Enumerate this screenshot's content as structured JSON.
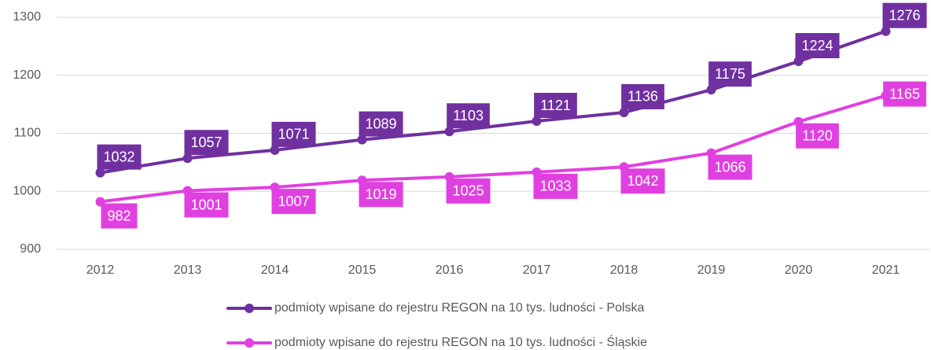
{
  "chart_data": {
    "type": "line",
    "categories": [
      "2012",
      "2013",
      "2014",
      "2015",
      "2016",
      "2017",
      "2018",
      "2019",
      "2020",
      "2021"
    ],
    "series": [
      {
        "name": "podmioty wpisane do rejestru REGON na 10 tys. ludności - Polska",
        "color": "#7030a0",
        "values": [
          1032,
          1057,
          1071,
          1089,
          1103,
          1121,
          1136,
          1175,
          1224,
          1276
        ]
      },
      {
        "name": "podmioty wpisane do rejestru REGON na 10 tys. ludności - Śląskie",
        "color": "#e040e0",
        "values": [
          982,
          1001,
          1007,
          1019,
          1025,
          1033,
          1042,
          1066,
          1120,
          1165
        ]
      }
    ],
    "ylim": [
      900,
      1300
    ],
    "yticks": [
      900,
      1000,
      1100,
      1200,
      1300
    ],
    "grid": true
  }
}
